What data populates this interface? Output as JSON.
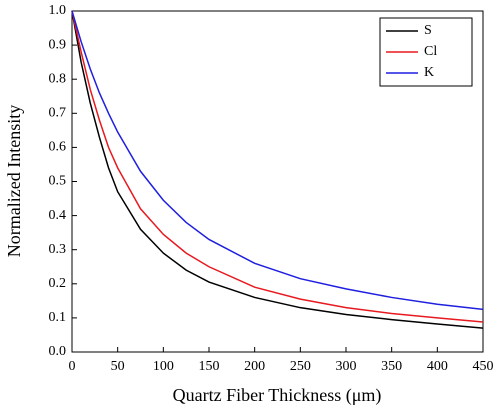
{
  "chart_data": {
    "type": "line",
    "x_label": "Quartz Fiber Thickness (μm)",
    "y_label": "Normalized Intensity",
    "x": [
      0,
      10,
      20,
      30,
      40,
      50,
      75,
      100,
      125,
      150,
      200,
      250,
      300,
      350,
      400,
      450
    ],
    "series": [
      {
        "name": "S",
        "color": "#000000",
        "values": [
          1.0,
          0.85,
          0.73,
          0.63,
          0.54,
          0.47,
          0.36,
          0.29,
          0.24,
          0.205,
          0.16,
          0.13,
          0.11,
          0.095,
          0.082,
          0.07
        ]
      },
      {
        "name": "Cl",
        "color": "#e8191f",
        "values": [
          1.0,
          0.88,
          0.77,
          0.68,
          0.6,
          0.54,
          0.42,
          0.345,
          0.29,
          0.25,
          0.19,
          0.155,
          0.13,
          0.113,
          0.1,
          0.088
        ]
      },
      {
        "name": "K",
        "color": "#1f1fe0",
        "values": [
          1.0,
          0.91,
          0.83,
          0.76,
          0.7,
          0.645,
          0.53,
          0.445,
          0.38,
          0.33,
          0.26,
          0.215,
          0.185,
          0.16,
          0.14,
          0.125
        ]
      }
    ],
    "xlim": [
      0,
      450
    ],
    "xticks": [
      0,
      50,
      100,
      150,
      200,
      250,
      300,
      350,
      400,
      450
    ],
    "ylim": [
      0,
      1
    ],
    "yticks": [
      {
        "value": 0,
        "label": "0.0"
      },
      0.1,
      0.2,
      0.3,
      0.4,
      0.5,
      0.6,
      0.7,
      0.8,
      0.9,
      {
        "value": 1,
        "label": "1.0"
      }
    ],
    "legend": "upper right"
  }
}
